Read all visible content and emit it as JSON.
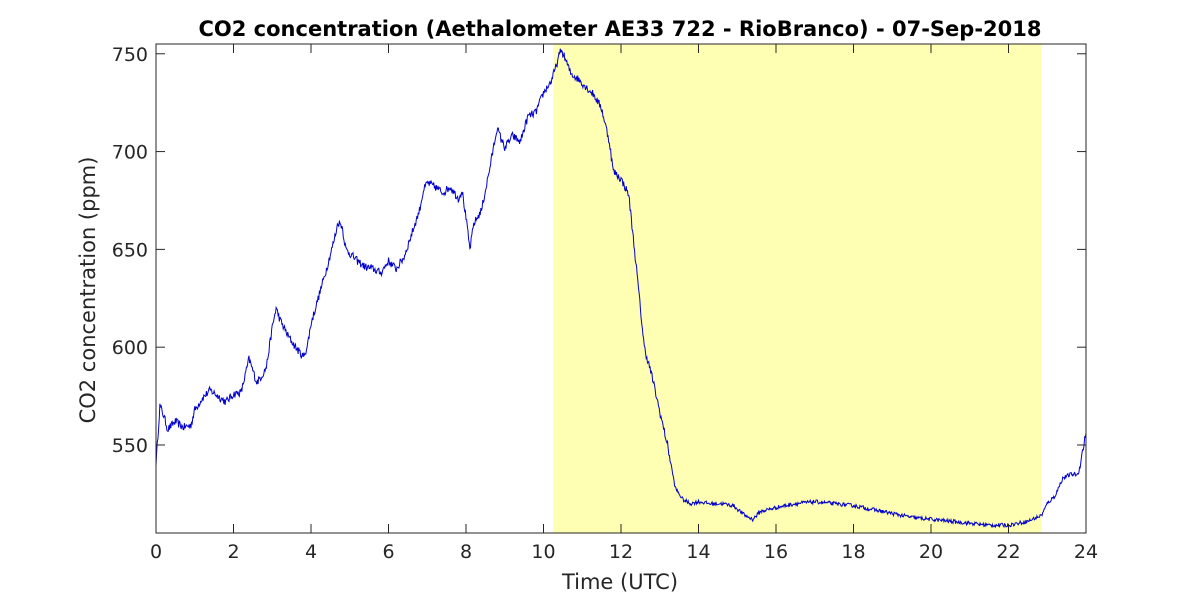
{
  "chart_data": {
    "type": "line",
    "title": "CO2 concentration (Aethalometer AE33 722 - RioBranco) - 07-Sep-2018",
    "xlabel": "Time (UTC)",
    "ylabel": "CO2 concentration (ppm)",
    "xlim": [
      0,
      24
    ],
    "ylim": [
      505,
      755
    ],
    "xticks": [
      0,
      2,
      4,
      6,
      8,
      10,
      12,
      14,
      16,
      18,
      20,
      22,
      24
    ],
    "yticks": [
      550,
      600,
      650,
      700,
      750
    ],
    "grid": false,
    "legend": "none",
    "highlight": {
      "x_start": 10.25,
      "x_end": 22.85,
      "color": "#ffffb3"
    },
    "line_color": "#0000cc",
    "series": [
      {
        "x": [
          0,
          0.1,
          0.2,
          0.3,
          0.5,
          0.7,
          0.9,
          1.0,
          1.2,
          1.4,
          1.6,
          1.8,
          2.0,
          2.2,
          2.4,
          2.6,
          2.75,
          2.85,
          3.0,
          3.1,
          3.2,
          3.4,
          3.6,
          3.8,
          3.9,
          4.0,
          4.2,
          4.4,
          4.6,
          4.7,
          4.8,
          4.9,
          5.0,
          5.2,
          5.4,
          5.6,
          5.8,
          6.0,
          6.2,
          6.4,
          6.6,
          6.8,
          6.9,
          7.0,
          7.2,
          7.4,
          7.6,
          7.8,
          7.9,
          8.0,
          8.1,
          8.2,
          8.4,
          8.6,
          8.8,
          9.0,
          9.2,
          9.4,
          9.6,
          9.8,
          10.0,
          10.2,
          10.3,
          10.45,
          10.55,
          10.7,
          10.9,
          11.1,
          11.3,
          11.5,
          11.7,
          11.8,
          12.0,
          12.2,
          12.4,
          12.6,
          12.8,
          13.0,
          13.2,
          13.4,
          13.6,
          13.8,
          14.0,
          14.3,
          14.6,
          14.9,
          15.2,
          15.4,
          15.6,
          16.0,
          16.5,
          17.0,
          17.5,
          18.0,
          18.5,
          19.0,
          19.5,
          20.0,
          20.5,
          21.0,
          21.5,
          22.0,
          22.5,
          22.85,
          23.0,
          23.2,
          23.4,
          23.6,
          23.8,
          24.0
        ],
        "values": [
          540,
          570,
          565,
          558,
          562,
          559,
          560,
          568,
          574,
          578,
          575,
          572,
          576,
          577,
          594,
          582,
          586,
          590,
          610,
          620,
          614,
          606,
          600,
          595,
          600,
          612,
          626,
          640,
          655,
          664,
          662,
          650,
          648,
          644,
          641,
          640,
          638,
          644,
          640,
          646,
          658,
          670,
          680,
          684,
          682,
          679,
          682,
          676,
          680,
          666,
          650,
          663,
          670,
          690,
          712,
          702,
          708,
          705,
          718,
          720,
          730,
          736,
          742,
          752,
          748,
          740,
          737,
          733,
          729,
          722,
          705,
          690,
          686,
          678,
          640,
          600,
          585,
          567,
          550,
          528,
          522,
          520,
          521,
          520,
          520,
          519,
          514,
          512,
          516,
          518,
          520,
          521,
          520,
          519,
          517,
          515,
          513,
          512,
          511,
          510,
          509,
          509,
          511,
          514,
          520,
          524,
          533,
          535,
          535,
          556
        ]
      }
    ]
  }
}
